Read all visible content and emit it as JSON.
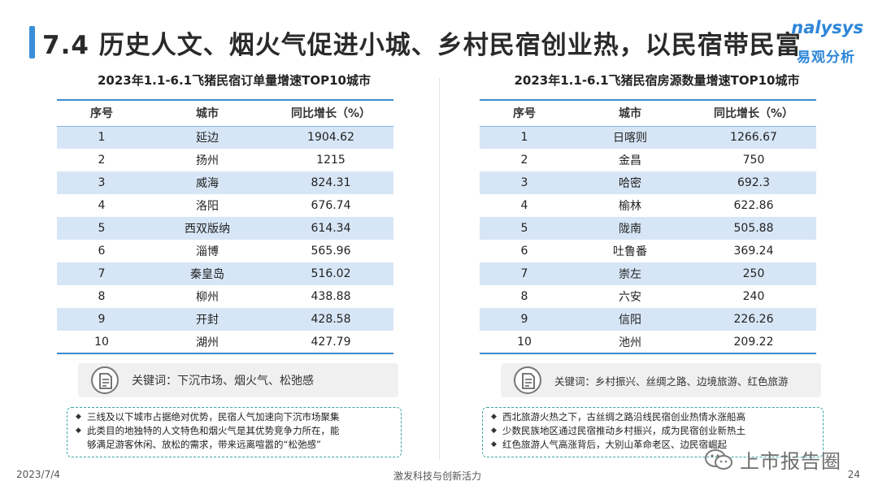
{
  "header": {
    "title": "7.4 历史人文、烟火气促进小城、乡村民宿创业热，以民宿带民富",
    "logo_top": "nalysys",
    "logo_bottom": "易观分析"
  },
  "left_table": {
    "title": "2023年1.1-6.1飞猪民宿订单量增速TOP10城市",
    "headers": [
      "序号",
      "城市",
      "同比增长（%）"
    ],
    "rows": [
      [
        "1",
        "延边",
        "1904.62"
      ],
      [
        "2",
        "扬州",
        "1215"
      ],
      [
        "3",
        "威海",
        "824.31"
      ],
      [
        "4",
        "洛阳",
        "676.74"
      ],
      [
        "5",
        "西双版纳",
        "614.34"
      ],
      [
        "6",
        "淄博",
        "565.96"
      ],
      [
        "7",
        "秦皇岛",
        "516.02"
      ],
      [
        "8",
        "柳州",
        "438.88"
      ],
      [
        "9",
        "开封",
        "428.58"
      ],
      [
        "10",
        "湖州",
        "427.79"
      ]
    ],
    "keywords": "关键词：下沉市场、烟火气、松弛感",
    "notes": [
      "三线及以下城市占据绝对优势，民宿人气加速向下沉市场聚集",
      "此类目的地独特的人文特色和烟火气是其优势竞争力所在，能",
      "够满足游客休闲、放松的需求，带来远离喧嚣的“松弛感”"
    ]
  },
  "right_table": {
    "title": "2023年1.1-6.1飞猪民宿房源数量增速TOP10城市",
    "headers": [
      "序号",
      "城市",
      "同比增长（%）"
    ],
    "rows": [
      [
        "1",
        "日喀则",
        "1266.67"
      ],
      [
        "2",
        "金昌",
        "750"
      ],
      [
        "3",
        "哈密",
        "692.3"
      ],
      [
        "4",
        "榆林",
        "622.86"
      ],
      [
        "5",
        "陇南",
        "505.88"
      ],
      [
        "6",
        "吐鲁番",
        "369.24"
      ],
      [
        "7",
        "崇左",
        "250"
      ],
      [
        "8",
        "六安",
        "240"
      ],
      [
        "9",
        "信阳",
        "226.26"
      ],
      [
        "10",
        "池州",
        "209.22"
      ]
    ],
    "keywords": "关键词：乡村振兴、丝绸之路、边境旅游、红色旅游",
    "notes": [
      "西北旅游火热之下，古丝绸之路沿线民宿创业热情水涨船高",
      "少数民族地区通过民宿推动乡村振兴，成为民宿创业新热土",
      "红色旅游人气高涨背后，大别山革命老区、边民宿崛起"
    ]
  },
  "footer": {
    "date": "2023/7/4",
    "center": "激发科技与创新活力",
    "page": "24",
    "watermark": "上市报告圈"
  }
}
